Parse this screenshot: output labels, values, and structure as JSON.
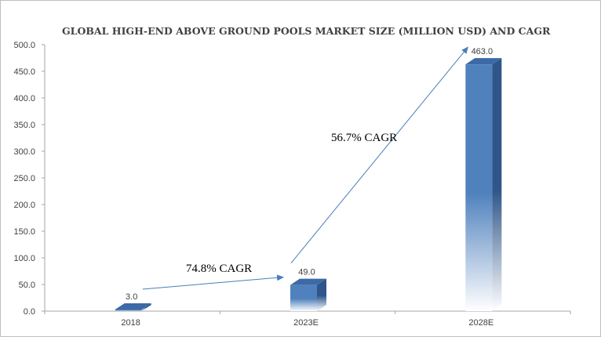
{
  "chart_data": {
    "type": "bar",
    "title": "GLOBAL HIGH-END ABOVE GROUND POOLS MARKET SIZE (MILLION USD) AND CAGR",
    "categories": [
      "2018",
      "2023E",
      "2028E"
    ],
    "values": [
      3.0,
      49.0,
      463.0
    ],
    "value_labels": [
      "3.0",
      "49.0",
      "463.0"
    ],
    "ylim": [
      0,
      500
    ],
    "yticks": [
      "0.0",
      "50.0",
      "100.0",
      "150.0",
      "200.0",
      "250.0",
      "300.0",
      "350.0",
      "400.0",
      "450.0",
      "500.0"
    ],
    "xlabel": "",
    "ylabel": "",
    "grid": false,
    "bar_color": "#4f81bd",
    "bar_dark_color": "#2f5589",
    "arrow_color": "#4a7ebb",
    "annotations": [
      {
        "text": "74.8% CAGR",
        "from_category": "2018",
        "to_category": "2023E"
      },
      {
        "text": "56.7% CAGR",
        "from_category": "2023E",
        "to_category": "2028E"
      }
    ]
  }
}
